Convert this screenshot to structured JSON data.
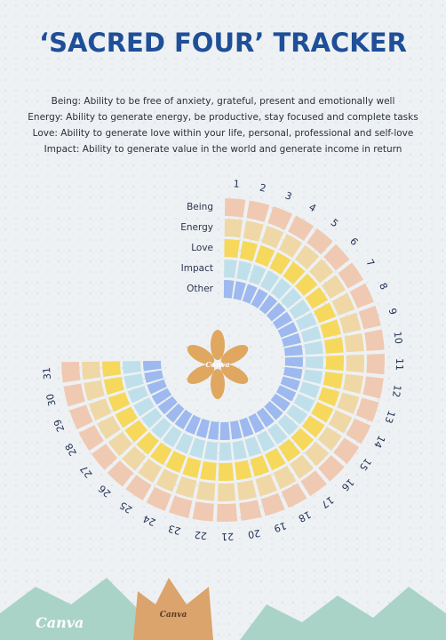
{
  "header": {
    "title": "‘SACRED FOUR’ TRACKER"
  },
  "definitions": [
    "Being: Ability to be free of anxiety, grateful, present and emotionally well",
    "Energy: Ability to generate energy, be productive, stay focused and complete tasks",
    "Love: Ability to generate love within your life, personal, professional and self-love",
    "Impact: Ability to generate value in the world and generate income in return"
  ],
  "tracker": {
    "rings": [
      "Being",
      "Energy",
      "Love",
      "Impact",
      "Other"
    ],
    "days": [
      "1",
      "2",
      "3",
      "4",
      "5",
      "6",
      "7",
      "8",
      "9",
      "10",
      "11",
      "12",
      "13",
      "14",
      "15",
      "16",
      "17",
      "18",
      "19",
      "20",
      "21",
      "22",
      "23",
      "24",
      "25",
      "26",
      "27",
      "28",
      "29",
      "30",
      "31"
    ]
  },
  "branding": {
    "logo": "Canva"
  }
}
